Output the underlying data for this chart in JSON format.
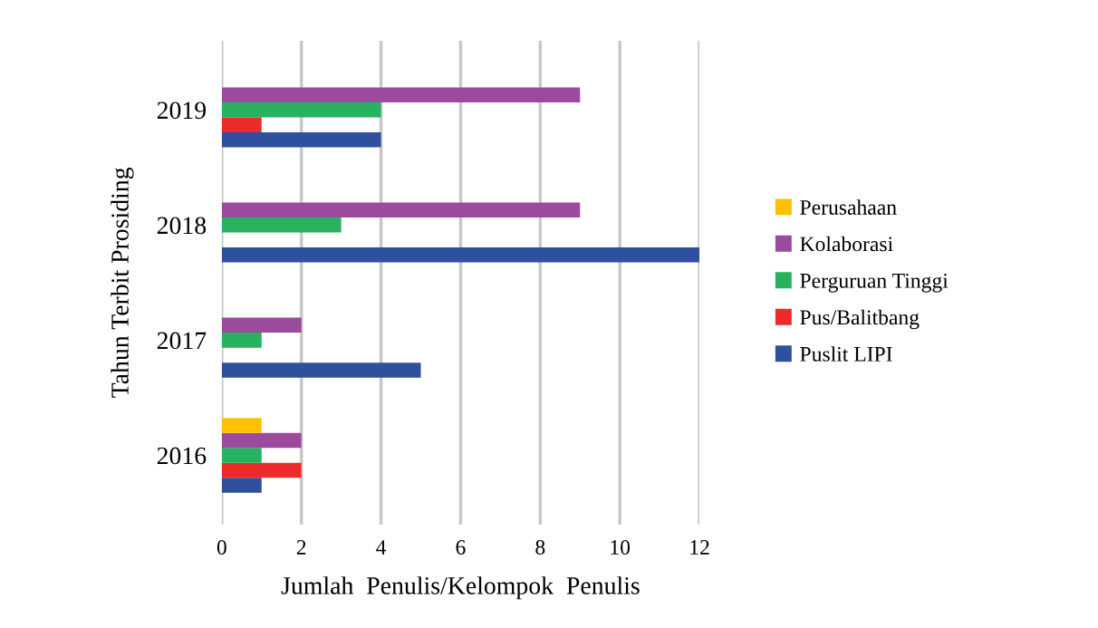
{
  "chart_data": {
    "type": "bar",
    "orientation": "horizontal",
    "xlabel": "Jumlah  Penulis/Kelompok  Penulis",
    "ylabel": "Tahun Terbit Prosiding",
    "categories": [
      "2019",
      "2018",
      "2017",
      "2016"
    ],
    "series": [
      {
        "name": "Puslit LIPI",
        "color": "#2f4f9f",
        "values": [
          4,
          12,
          5,
          1
        ]
      },
      {
        "name": "Pus/Balitbang",
        "color": "#ee2b2b",
        "values": [
          1,
          0,
          0,
          2
        ]
      },
      {
        "name": "Perguruan Tinggi",
        "color": "#27b25f",
        "values": [
          4,
          3,
          1,
          1
        ]
      },
      {
        "name": "Kolaborasi",
        "color": "#9b4a9e",
        "values": [
          9,
          9,
          2,
          2
        ]
      },
      {
        "name": "Perusahaan",
        "color": "#ffc000",
        "values": [
          0,
          0,
          0,
          1
        ]
      }
    ],
    "xlim": [
      0,
      12
    ],
    "xticks": [
      0,
      2,
      4,
      6,
      8,
      10,
      12
    ],
    "grid": "x",
    "legend": "right"
  }
}
